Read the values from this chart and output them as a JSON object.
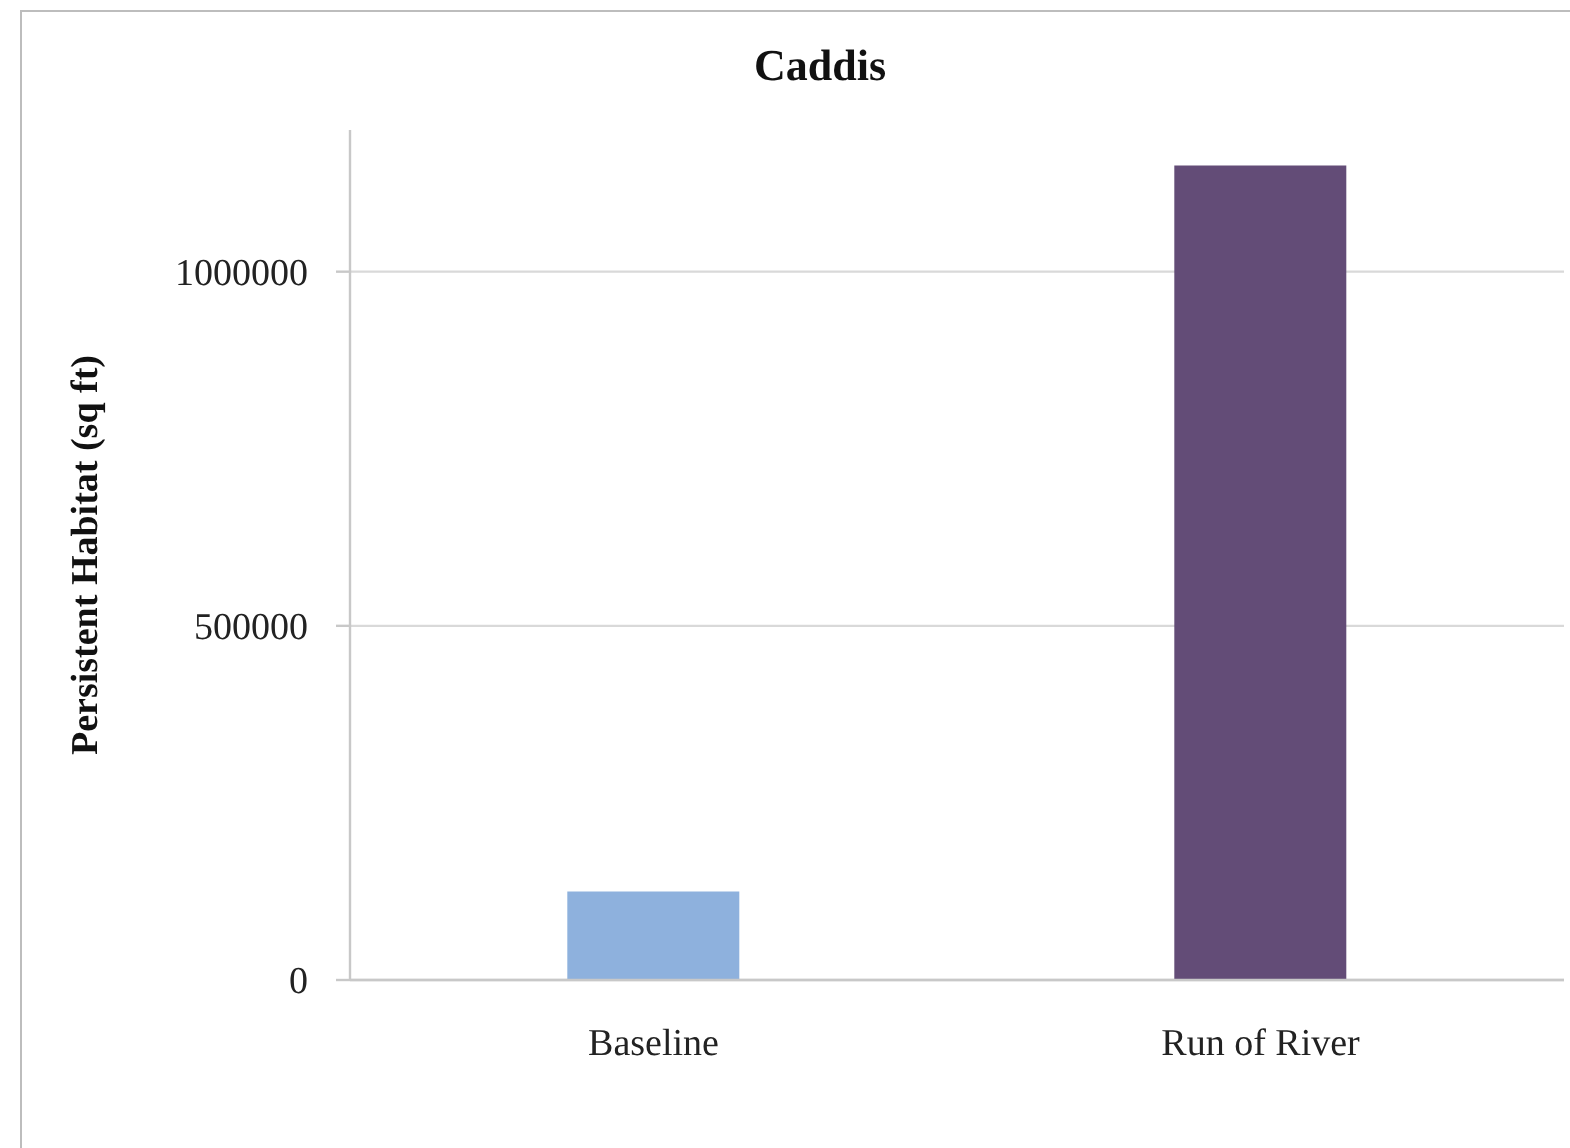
{
  "chart_data": {
    "type": "bar",
    "title": "Caddis",
    "ylabel": "Persistent Habitat (sq ft)",
    "categories": [
      "Baseline",
      "Run of River"
    ],
    "values": [
      125000,
      1150000
    ],
    "colors": [
      "#8eb1dd",
      "#634c77"
    ],
    "ylim": [
      0,
      1200000
    ],
    "yticks": [
      0,
      500000,
      1000000
    ],
    "grid": "y"
  }
}
